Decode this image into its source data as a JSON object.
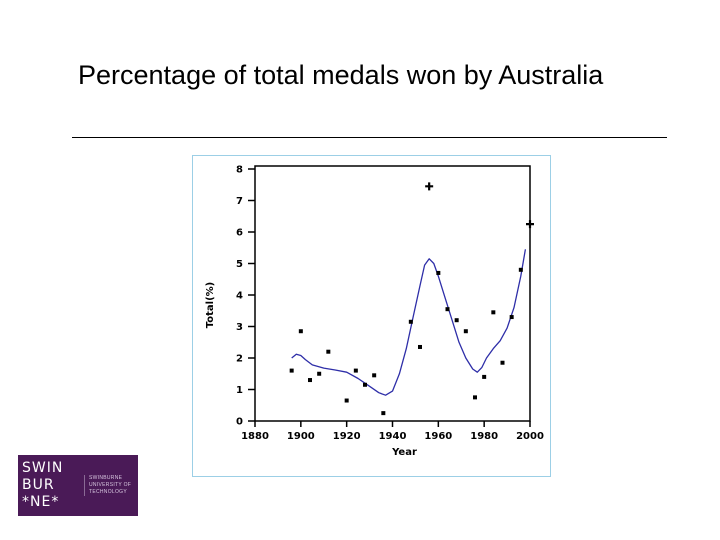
{
  "slide": {
    "title": "Percentage of total medals won by Australia"
  },
  "logo": {
    "mark_lines": [
      "SWIN",
      "BUR",
      "*NE*"
    ],
    "text_lines": [
      "Swinburne",
      "University of",
      "Technology"
    ]
  },
  "colors": {
    "curve": "#2e2ea8",
    "points": "#000000",
    "frame": "#9ccfe6",
    "logo_bg": "#4a1a57"
  },
  "chart_data": {
    "type": "scatter",
    "title": "",
    "xlabel": "Year",
    "ylabel": "Total(%)",
    "xlim": [
      1880,
      2000
    ],
    "ylim": [
      0,
      8
    ],
    "xticks": [
      "1880",
      "1900",
      "1920",
      "1940",
      "1960",
      "1980",
      "2000"
    ],
    "yticks": [
      "0",
      "1",
      "2",
      "3",
      "4",
      "5",
      "6",
      "7",
      "8"
    ],
    "grid": false,
    "series": [
      {
        "marker": "square",
        "points": [
          [
            1896,
            1.6
          ],
          [
            1900,
            2.85
          ],
          [
            1904,
            1.3
          ],
          [
            1908,
            1.5
          ],
          [
            1912,
            2.2
          ],
          [
            1920,
            0.65
          ],
          [
            1924,
            1.6
          ],
          [
            1928,
            1.15
          ],
          [
            1932,
            1.45
          ],
          [
            1936,
            0.25
          ],
          [
            1948,
            3.15
          ],
          [
            1952,
            2.35
          ],
          [
            1960,
            4.7
          ],
          [
            1964,
            3.55
          ],
          [
            1968,
            3.2
          ],
          [
            1972,
            2.85
          ],
          [
            1976,
            0.75
          ],
          [
            1980,
            1.4
          ],
          [
            1984,
            3.45
          ],
          [
            1988,
            1.85
          ],
          [
            1992,
            3.3
          ],
          [
            1996,
            4.8
          ]
        ]
      },
      {
        "marker": "plus",
        "points": [
          [
            1956,
            7.45
          ],
          [
            2000,
            6.25
          ]
        ]
      },
      {
        "type": "line",
        "points": [
          [
            1896,
            2.0
          ],
          [
            1898,
            2.12
          ],
          [
            1900,
            2.08
          ],
          [
            1902,
            1.95
          ],
          [
            1905,
            1.78
          ],
          [
            1910,
            1.68
          ],
          [
            1915,
            1.62
          ],
          [
            1920,
            1.55
          ],
          [
            1925,
            1.35
          ],
          [
            1930,
            1.1
          ],
          [
            1934,
            0.9
          ],
          [
            1937,
            0.82
          ],
          [
            1940,
            0.95
          ],
          [
            1943,
            1.5
          ],
          [
            1946,
            2.3
          ],
          [
            1949,
            3.3
          ],
          [
            1952,
            4.3
          ],
          [
            1954,
            4.95
          ],
          [
            1956,
            5.15
          ],
          [
            1958,
            5.0
          ],
          [
            1960,
            4.6
          ],
          [
            1963,
            3.9
          ],
          [
            1966,
            3.2
          ],
          [
            1969,
            2.5
          ],
          [
            1972,
            2.0
          ],
          [
            1975,
            1.65
          ],
          [
            1977,
            1.55
          ],
          [
            1979,
            1.7
          ],
          [
            1981,
            2.0
          ],
          [
            1984,
            2.3
          ],
          [
            1987,
            2.55
          ],
          [
            1990,
            2.95
          ],
          [
            1993,
            3.6
          ],
          [
            1996,
            4.6
          ],
          [
            1998,
            5.45
          ]
        ]
      }
    ]
  }
}
